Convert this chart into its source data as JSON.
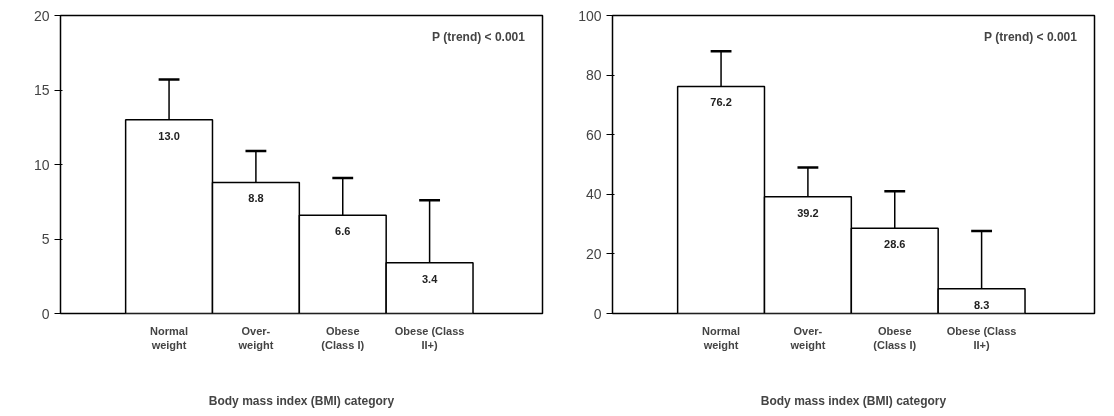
{
  "chart_data": [
    {
      "type": "bar",
      "xlabel": "Body mass index (BMI) category",
      "categories": [
        "Normal\nweight",
        "Over-\nweight",
        "Obese\n(Class I)",
        "Obese (Class\nII+)"
      ],
      "values": [
        13.0,
        8.8,
        6.6,
        3.4
      ],
      "color": "#ffffff",
      "errors": [
        [
          13.0,
          15.7
        ],
        [
          8.8,
          10.9
        ],
        [
          6.6,
          9.1
        ],
        [
          3.4,
          7.6
        ]
      ],
      "ylim": [
        0,
        20
      ],
      "yticks": [
        0,
        5,
        10,
        15,
        20
      ],
      "value_labels": [
        "13.0",
        "8.8",
        "6.6",
        "3.4"
      ],
      "grid": false,
      "annotations": [
        "P (trend) < 0.001"
      ]
    },
    {
      "type": "bar",
      "xlabel": "Body mass index (BMI) category",
      "categories": [
        "Normal\nweight",
        "Over-\nweight",
        "Obese\n(Class I)",
        "Obese (Class\nII+)"
      ],
      "values": [
        76.2,
        39.2,
        28.6,
        8.3
      ],
      "color": "#ffffff",
      "errors": [
        [
          76.2,
          88.0
        ],
        [
          39.2,
          49.0
        ],
        [
          28.6,
          41.0
        ],
        [
          8.3,
          27.7
        ]
      ],
      "ylim": [
        0,
        100
      ],
      "yticks": [
        0,
        20,
        40,
        60,
        80,
        100
      ],
      "value_labels": [
        "76.2",
        "39.2",
        "28.6",
        "8.3"
      ],
      "grid": false,
      "annotations": [
        "P (trend) < 0.001"
      ]
    }
  ]
}
